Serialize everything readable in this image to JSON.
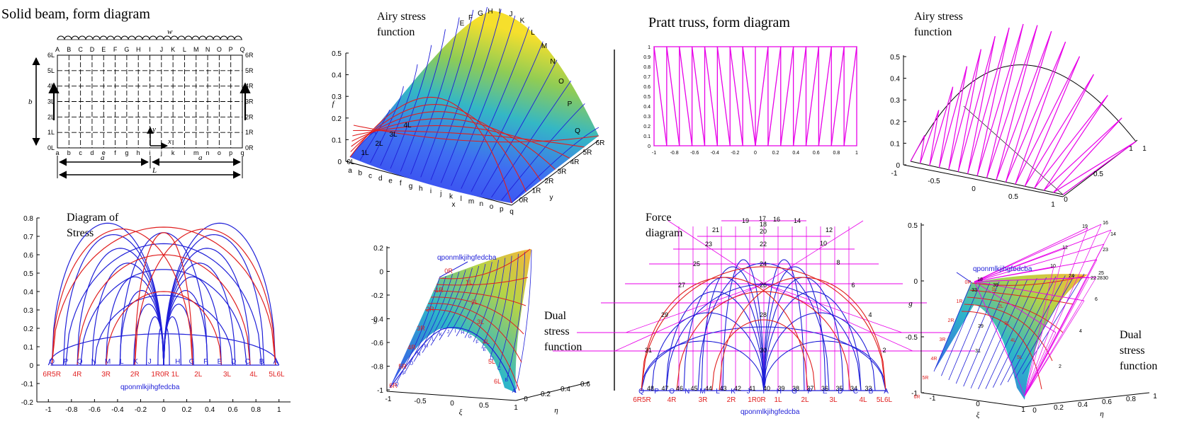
{
  "colors": {
    "blue": "#1f1fd8",
    "red": "#e01e1e",
    "magenta": "#e800e8",
    "black": "#000000"
  },
  "titles": {
    "solid_beam": "Solid beam, form diagram",
    "pratt_truss": "Pratt truss, form diagram",
    "airy_1_l1": "Airy stress",
    "airy_1_l2": "function",
    "airy_2_l1": "Airy stress",
    "airy_2_l2": "function",
    "stress_l1": "Diagram of",
    "stress_l2": "Stress",
    "force_l1": "Force",
    "force_l2": "diagram",
    "dual_1_l1": "Dual",
    "dual_1_l2": "stress",
    "dual_1_l3": "function",
    "dual_2_l1": "Dual",
    "dual_2_l2": "stress",
    "dual_2_l3": "function"
  },
  "beam": {
    "top_cols": [
      "A",
      "B",
      "C",
      "D",
      "E",
      "F",
      "G",
      "H",
      "I",
      "J",
      "K",
      "L",
      "M",
      "N",
      "O",
      "P",
      "Q"
    ],
    "bottom_cols": [
      "a",
      "b",
      "c",
      "d",
      "e",
      "f",
      "g",
      "h",
      "i",
      "j",
      "k",
      "l",
      "m",
      "n",
      "o",
      "p",
      "q"
    ],
    "left_rows": [
      "6L",
      "5L",
      "4L",
      "3L",
      "2L",
      "1L",
      "0L"
    ],
    "right_rows": [
      "6R",
      "5R",
      "4R",
      "3R",
      "2R",
      "1R",
      "0R"
    ],
    "load": "w",
    "height": "b",
    "span_half": "a",
    "span": "L",
    "axis_x": "x",
    "axis_y": "y"
  },
  "stress": {
    "y_ticks": [
      "0.8",
      "0.7",
      "0.6",
      "0.5",
      "0.4",
      "0.3",
      "0.2",
      "0.1",
      "0",
      "-0.1",
      "-0.2"
    ],
    "x_ticks": [
      "-1",
      "-0.8",
      "-0.6",
      "-0.4",
      "-0.2",
      "0",
      "0.2",
      "0.4",
      "0.6",
      "0.8",
      "1"
    ],
    "blue_letters": [
      "Q",
      "P",
      "O",
      "N",
      "M",
      "L",
      "K",
      "J",
      "I",
      "H",
      "G",
      "F",
      "E",
      "D",
      "C",
      "B",
      "A"
    ],
    "red_labels": [
      {
        "t": "6R5R",
        "x": -0.97
      },
      {
        "t": "4R",
        "x": -0.75
      },
      {
        "t": "3R",
        "x": -0.5
      },
      {
        "t": "2R",
        "x": -0.25
      },
      {
        "t": "1R0R",
        "x": -0.03
      },
      {
        "t": "1L",
        "x": 0.1
      },
      {
        "t": "2L",
        "x": 0.3
      },
      {
        "t": "3L",
        "x": 0.55
      },
      {
        "t": "4L",
        "x": 0.78
      },
      {
        "t": "5L6L",
        "x": 0.98
      }
    ],
    "pole_caption": "qponmlkjihgfedcba"
  },
  "airy1": {
    "z_label": "f",
    "z_ticks": [
      "0.5",
      "0.4",
      "0.3",
      "0.2",
      "0.1",
      "0"
    ],
    "x_label": "x",
    "y_label": "y",
    "letters_bottom": [
      "a",
      "b",
      "c",
      "d",
      "e",
      "f",
      "g",
      "h",
      "i",
      "j",
      "k",
      "l",
      "m",
      "n",
      "o",
      "p",
      "q"
    ],
    "peak_letters": [
      "E",
      "F",
      "G",
      "H",
      "I",
      "J",
      "K",
      "L",
      "M",
      "N",
      "O",
      "P",
      "Q"
    ],
    "left_rows": [
      "4L",
      "3L",
      "2L",
      "1L",
      "0L"
    ],
    "right_rows": [
      "6R",
      "5R",
      "4R",
      "3R",
      "2R",
      "1R",
      "0R"
    ]
  },
  "dual1": {
    "g_label": "g",
    "xi_label": "ξ",
    "eta_label": "η",
    "g_ticks": [
      "0.2",
      "0",
      "-0.2",
      "-0.4",
      "-0.6",
      "-0.8",
      "-1"
    ],
    "xi_ticks": [
      "-1",
      "-0.5",
      "0",
      "0.5",
      "1"
    ],
    "eta_ticks": [
      "0",
      "0.2",
      "0.4",
      "0.6"
    ],
    "pole_caption": "qponmlkjihgfedcba",
    "r_labels": [
      "0R",
      "1R",
      "2R",
      "3R",
      "4R",
      "5R",
      "6R"
    ],
    "l_labels": [
      "1L",
      "2L",
      "3L",
      "4L",
      "5L",
      "6L"
    ],
    "arc_letters": [
      "Q",
      "P",
      "O",
      "N",
      "M",
      "L",
      "K",
      "J",
      "I",
      "H",
      "G",
      "F",
      "E",
      "D",
      "C",
      "B",
      "A"
    ]
  },
  "pratt": {
    "y_ticks": [
      "1",
      "0.9",
      "0.8",
      "0.7",
      "0.6",
      "0.5",
      "0.4",
      "0.3",
      "0.2",
      "0.1",
      "0"
    ],
    "x_ticks": [
      "-1",
      "-0.8",
      "-0.6",
      "-0.4",
      "-0.2",
      "0",
      "0.2",
      "0.4",
      "0.6",
      "0.8",
      "1"
    ],
    "panels": 16
  },
  "airy2": {
    "z_ticks": [
      "0.5",
      "0.4",
      "0.3",
      "0.2",
      "0.1",
      "0"
    ],
    "x_ticks": [
      "-1",
      "-0.5",
      "0",
      "0.5",
      "1"
    ],
    "y_ticks": [
      "0",
      "0.5",
      "1"
    ],
    "corner_label": "1"
  },
  "force": {
    "nodes": [
      {
        "t": "19"
      },
      {
        "t": "17"
      },
      {
        "t": "16"
      },
      {
        "t": "14"
      },
      {
        "t": "18"
      },
      {
        "t": "20"
      },
      {
        "t": "21"
      },
      {
        "t": "12"
      },
      {
        "t": "23"
      },
      {
        "t": "22"
      },
      {
        "t": "10"
      },
      {
        "t": "25"
      },
      {
        "t": "24"
      },
      {
        "t": "8"
      },
      {
        "t": "27"
      },
      {
        "t": "26"
      },
      {
        "t": "6"
      },
      {
        "t": "29"
      },
      {
        "t": "28"
      },
      {
        "t": "4"
      },
      {
        "t": "31"
      },
      {
        "t": "30"
      },
      {
        "t": "2"
      }
    ],
    "base_numbers": [
      "48",
      "47",
      "46",
      "45",
      "44",
      "43",
      "42",
      "41",
      "40",
      "39",
      "38",
      "37",
      "36",
      "35",
      "34",
      "33"
    ],
    "blue_letters": [
      "Q",
      "P",
      "O",
      "N",
      "M",
      "L",
      "K",
      "J",
      "I",
      "H",
      "G",
      "F",
      "E",
      "D",
      "C",
      "B",
      "A"
    ],
    "red_labels": [
      "6R5R",
      "4R",
      "3R",
      "2R",
      "1R0R",
      "1L",
      "2L",
      "3L",
      "4L",
      "5L6L"
    ],
    "pole_caption": "qponmlkjihgfedcba"
  },
  "dual2": {
    "g_label": "g",
    "xi_label": "ξ",
    "eta_label": "η",
    "g_ticks": [
      "0.5",
      "0",
      "-0.5",
      "-1"
    ],
    "xi_ticks": [
      "-1",
      "0",
      "1"
    ],
    "eta_ticks": [
      "0",
      "0.2",
      "0.4",
      "0.6",
      "0.8",
      "1"
    ],
    "pole_caption": "qponmlkjihgfedcba",
    "numbers": [
      "19",
      "16",
      "14",
      "12",
      "23",
      "10",
      "25",
      "22",
      "24",
      "28",
      "30",
      "18",
      "6",
      "4",
      "2",
      "31",
      "29",
      "33",
      "39"
    ],
    "r_labels": [
      "0R",
      "1R",
      "2R",
      "3R",
      "4R",
      "5R",
      "6R"
    ],
    "l_labels": [
      "1L",
      "2L",
      "3L",
      "4L",
      "5L"
    ]
  }
}
